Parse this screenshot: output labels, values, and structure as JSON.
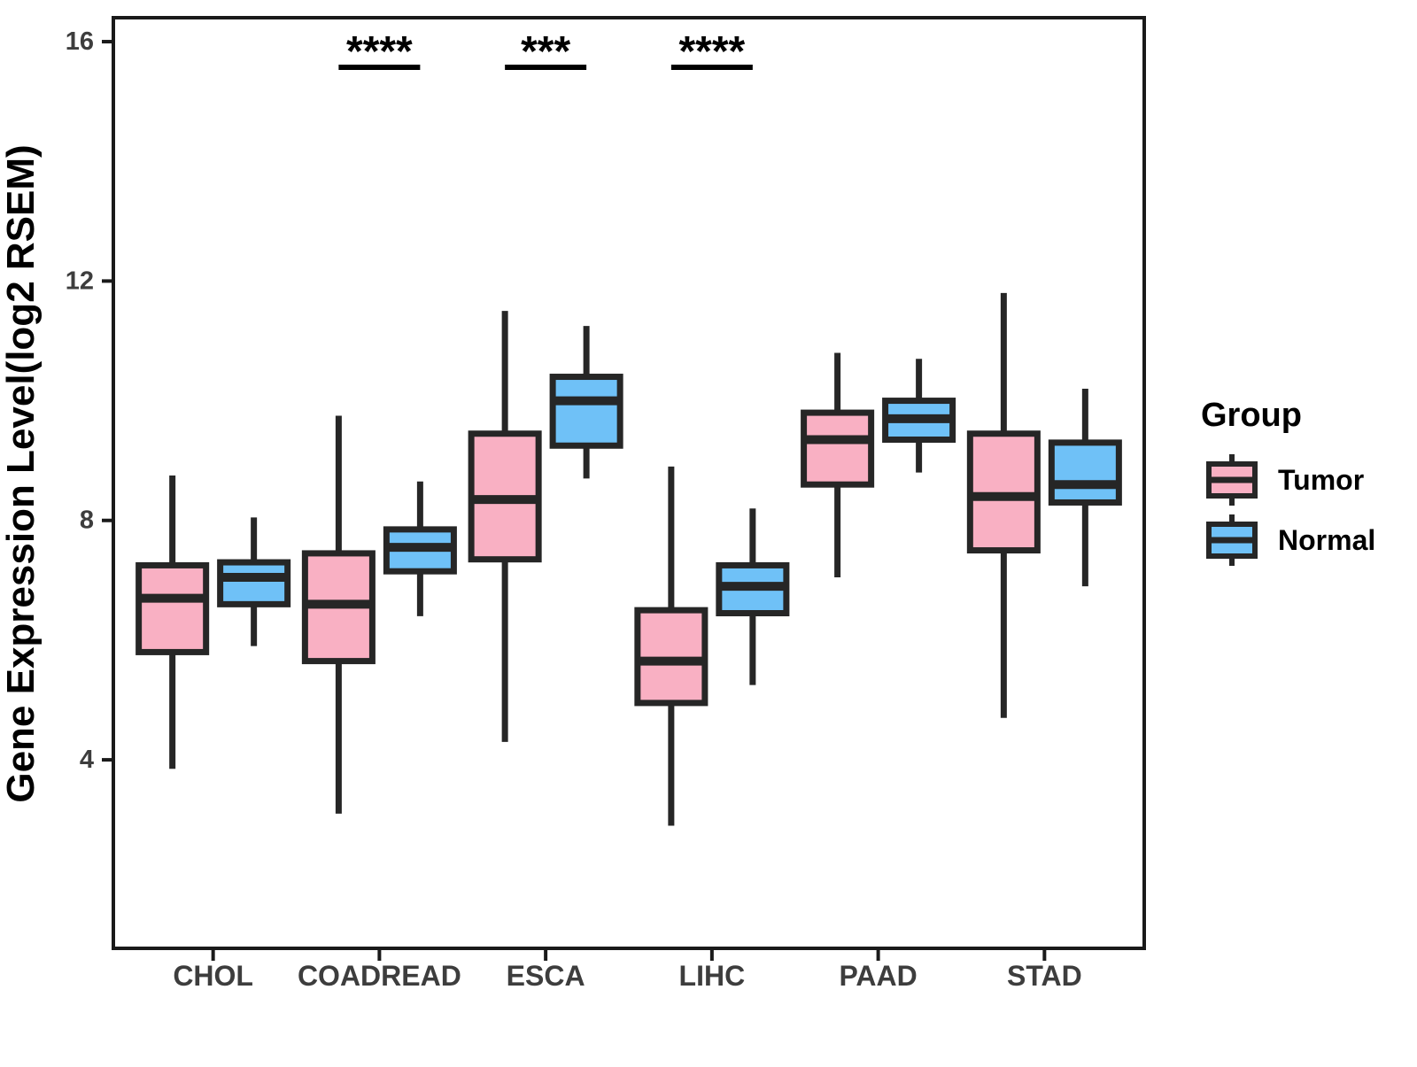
{
  "chart_data": {
    "type": "boxplot",
    "title": "",
    "xlabel": "",
    "ylabel": "Gene Expression Level(log2 RSEM)",
    "categories": [
      "CHOL",
      "COADREAD",
      "ESCA",
      "LIHC",
      "PAAD",
      "STAD"
    ],
    "yticks": [
      4,
      8,
      12,
      16
    ],
    "ylim": [
      0.85,
      16.4
    ],
    "grid": false,
    "legend": {
      "title": "Group",
      "position": "right"
    },
    "groups": [
      {
        "name": "Tumor",
        "fill": "#F9B0C3"
      },
      {
        "name": "Normal",
        "fill": "#6FC1F7"
      }
    ],
    "series": [
      {
        "name": "Tumor",
        "values": [
          {
            "category": "CHOL",
            "whisker_low": 3.85,
            "q1": 5.8,
            "median": 6.7,
            "q3": 7.25,
            "whisker_high": 8.75
          },
          {
            "category": "COADREAD",
            "whisker_low": 3.1,
            "q1": 5.65,
            "median": 6.6,
            "q3": 7.45,
            "whisker_high": 9.75
          },
          {
            "category": "ESCA",
            "whisker_low": 4.3,
            "q1": 7.35,
            "median": 8.35,
            "q3": 9.45,
            "whisker_high": 11.5
          },
          {
            "category": "LIHC",
            "whisker_low": 2.9,
            "q1": 4.95,
            "median": 5.65,
            "q3": 6.5,
            "whisker_high": 8.9
          },
          {
            "category": "PAAD",
            "whisker_low": 7.05,
            "q1": 8.6,
            "median": 9.35,
            "q3": 9.8,
            "whisker_high": 10.8
          },
          {
            "category": "STAD",
            "whisker_low": 4.7,
            "q1": 7.5,
            "median": 8.4,
            "q3": 9.45,
            "whisker_high": 11.8
          }
        ]
      },
      {
        "name": "Normal",
        "values": [
          {
            "category": "CHOL",
            "whisker_low": 5.9,
            "q1": 6.6,
            "median": 7.05,
            "q3": 7.3,
            "whisker_high": 8.05
          },
          {
            "category": "COADREAD",
            "whisker_low": 6.4,
            "q1": 7.15,
            "median": 7.55,
            "q3": 7.85,
            "whisker_high": 8.65
          },
          {
            "category": "ESCA",
            "whisker_low": 8.7,
            "q1": 9.25,
            "median": 10.0,
            "q3": 10.4,
            "whisker_high": 11.25
          },
          {
            "category": "LIHC",
            "whisker_low": 5.25,
            "q1": 6.45,
            "median": 6.9,
            "q3": 7.25,
            "whisker_high": 8.2
          },
          {
            "category": "PAAD",
            "whisker_low": 8.8,
            "q1": 9.35,
            "median": 9.7,
            "q3": 10.0,
            "whisker_high": 10.7
          },
          {
            "category": "STAD",
            "whisker_low": 6.9,
            "q1": 8.3,
            "median": 8.6,
            "q3": 9.3,
            "whisker_high": 10.2
          }
        ]
      }
    ],
    "significance": [
      {
        "category": "COADREAD",
        "label": "****"
      },
      {
        "category": "ESCA",
        "label": "***"
      },
      {
        "category": "LIHC",
        "label": "****"
      }
    ],
    "colors": {
      "box_border": "#262626",
      "axis": "#1a1a1a",
      "tick_label": "#3d3d3d",
      "text": "#000000",
      "background": "#ffffff"
    }
  }
}
